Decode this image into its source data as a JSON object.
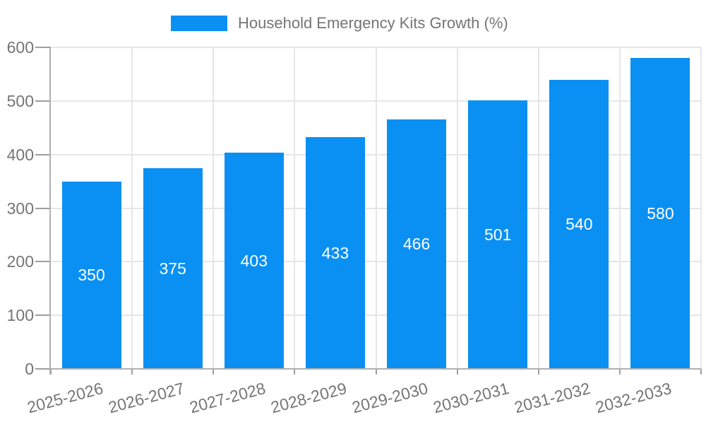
{
  "legend": {
    "label": "Household Emergency Kits Growth (%)"
  },
  "colors": {
    "bar": "#0a90f3",
    "grid": "#e6e6e6",
    "axis": "#b0b0b0",
    "tick": "#9e9e9e",
    "text": "#757575",
    "value_text": "#ffffff"
  },
  "chart_data": {
    "type": "bar",
    "title": "Household Emergency Kits Growth (%)",
    "categories": [
      "2025-2026",
      "2026-2027",
      "2027-2028",
      "2028-2029",
      "2029-2030",
      "2030-2031",
      "2031-2032",
      "2032-2033"
    ],
    "values": [
      350,
      375,
      403,
      433,
      466,
      501,
      540,
      580
    ],
    "xlabel": "",
    "ylabel": "",
    "ylim": [
      0,
      600
    ],
    "yticks": [
      0,
      100,
      200,
      300,
      400,
      500,
      600
    ],
    "grid": true,
    "legend_position": "top",
    "value_labels": "inside-center",
    "x_label_rotation_deg": -15
  }
}
